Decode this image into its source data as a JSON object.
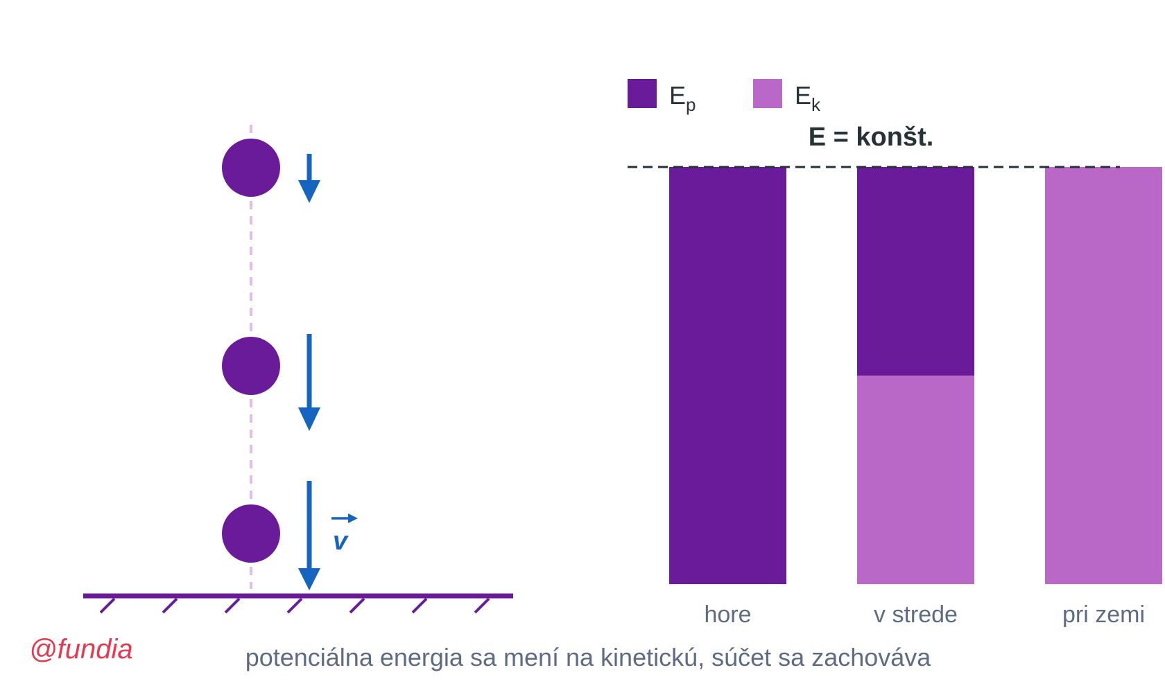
{
  "colors": {
    "ep": "#6a1b9a",
    "ek": "#ba68c8",
    "ball": "#6a1b9a",
    "arrow": "#1565c0",
    "path": "#e1bee7",
    "ground": "#6a1b9a",
    "text": "#5e6b82",
    "dark": "#263238",
    "brand": "#e53950"
  },
  "legend": {
    "ep_main": "E",
    "ep_sub": "p",
    "ek_main": "E",
    "ek_sub": "k"
  },
  "energy_label": "E = konšt.",
  "velocity_label": "v",
  "brand_text": "@fundia",
  "caption": "potenciálna energia sa mení na kinetickú, súčet sa zachováva",
  "chart_data": {
    "type": "bar",
    "stacked": true,
    "categories": [
      "hore",
      "v strede",
      "pri zemi"
    ],
    "series": [
      {
        "name": "Ep",
        "values": [
          100,
          50,
          0
        ]
      },
      {
        "name": "Ek",
        "values": [
          0,
          50,
          100
        ]
      }
    ],
    "total_energy_line": 100,
    "legend_position": "top-left",
    "grid": false
  }
}
